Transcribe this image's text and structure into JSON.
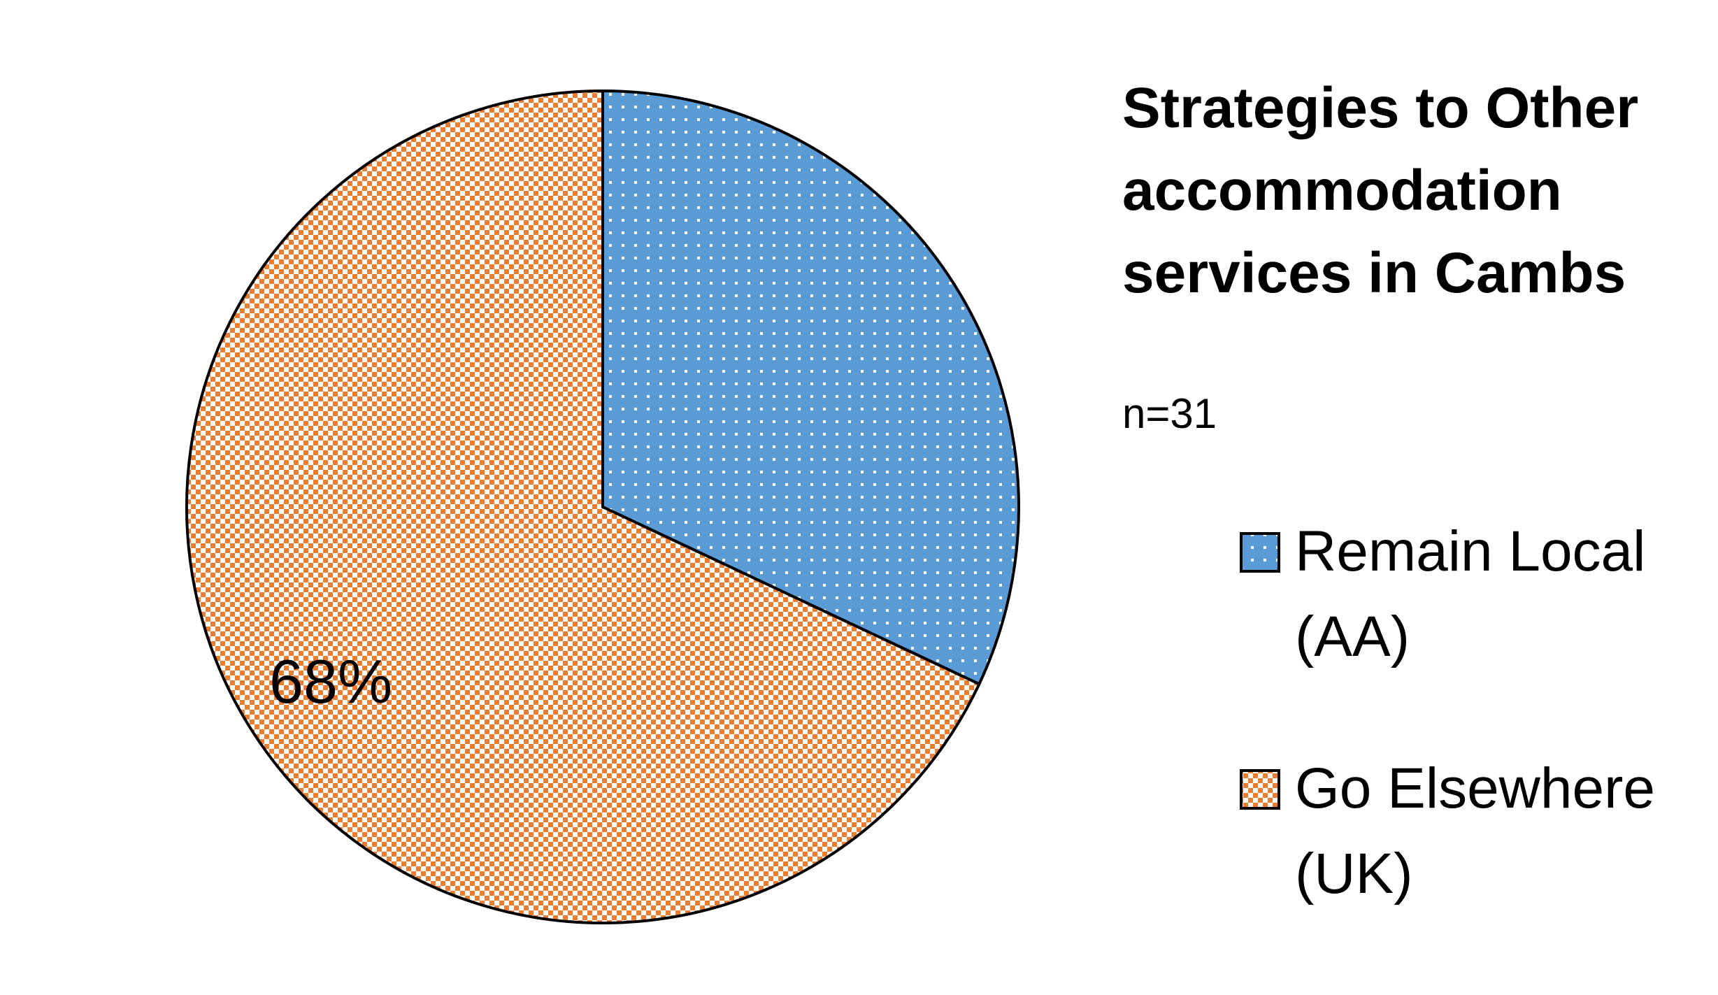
{
  "chart_data": {
    "type": "pie",
    "title": [
      "Strategies to Other",
      "accommodation",
      "services in Cambs"
    ],
    "note": "n=31",
    "categories": [
      "Remain Local (AA)",
      "Go Elsewhere (UK)"
    ],
    "values": [
      32,
      68
    ],
    "data_labels": [
      "",
      "68%"
    ],
    "legend": [
      {
        "lines": [
          "Remain Local",
          "(AA)"
        ]
      },
      {
        "lines": [
          "Go Elsewhere",
          "(UK)"
        ]
      }
    ],
    "colors": [
      "#5b9bd5",
      "#ed7d31"
    ],
    "legend_position": "right",
    "start_angle": "12 o'clock, clockwise"
  }
}
